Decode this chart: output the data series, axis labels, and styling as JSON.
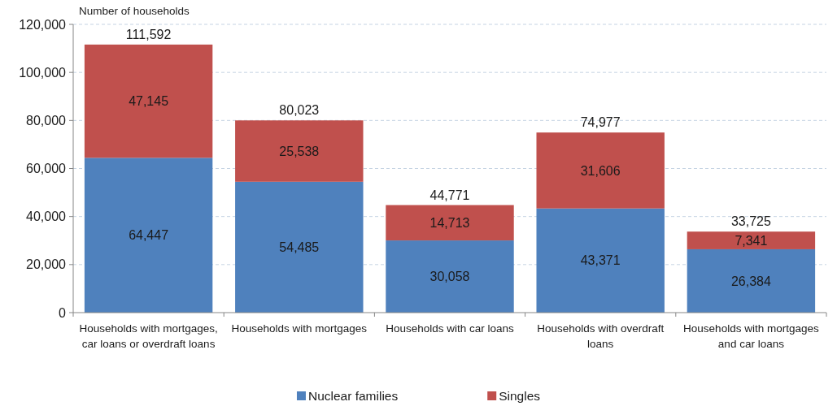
{
  "chart_data": {
    "type": "bar",
    "stacked": true,
    "ylabel": "Number of households",
    "categories": [
      "Households with mortgages, car loans or overdraft loans",
      "Households with mortgages",
      "Households with car loans",
      "Households with overdraft loans",
      "Households with mortgages and car loans"
    ],
    "series": [
      {
        "name": "Nuclear families",
        "color": "#4f81bd",
        "values": [
          64447,
          54485,
          30058,
          43371,
          26384
        ],
        "value_labels": [
          "64,447",
          "54,485",
          "30,058",
          "43,371",
          "26,384"
        ]
      },
      {
        "name": "Singles",
        "color": "#c0504d",
        "values": [
          47145,
          25538,
          14713,
          31606,
          7341
        ],
        "value_labels": [
          "47,145",
          "25,538",
          "14,713",
          "31,606",
          "7,341"
        ]
      }
    ],
    "totals": [
      "111,592",
      "80,023",
      "44,771",
      "74,977",
      "33,725"
    ],
    "ylim": [
      0,
      120000
    ],
    "yticks": [
      {
        "value": 0,
        "label": "0"
      },
      {
        "value": 20000,
        "label": "20,000"
      },
      {
        "value": 40000,
        "label": "40,000"
      },
      {
        "value": 60000,
        "label": "60,000"
      },
      {
        "value": 80000,
        "label": "80,000"
      },
      {
        "value": 100000,
        "label": "100,000"
      },
      {
        "value": 120000,
        "label": "120,000"
      }
    ],
    "grid": "y",
    "legend": "bottom"
  }
}
